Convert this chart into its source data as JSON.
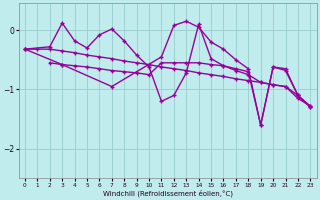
{
  "xlabel": "Windchill (Refroidissement éolien,°C)",
  "background_color": "#c0ecee",
  "grid_color": "#99cccc",
  "line_color": "#990099",
  "xlim": [
    -0.5,
    23.5
  ],
  "ylim": [
    -2.5,
    0.45
  ],
  "yticks": [
    0,
    -1,
    -2
  ],
  "xticks": [
    0,
    1,
    2,
    3,
    4,
    5,
    6,
    7,
    8,
    9,
    10,
    11,
    12,
    13,
    14,
    15,
    16,
    17,
    18,
    19,
    20,
    21,
    22,
    23
  ],
  "series": [
    {
      "x": [
        0,
        1,
        2,
        3,
        4,
        5,
        6,
        7,
        8,
        9,
        10,
        11,
        12,
        13,
        14,
        15,
        16,
        17,
        18,
        19,
        20,
        21,
        22,
        23
      ],
      "y": [
        -0.32,
        -0.32,
        -0.32,
        -0.35,
        -0.38,
        -0.42,
        -0.45,
        -0.48,
        -0.52,
        -0.55,
        -0.58,
        -0.62,
        -0.65,
        -0.68,
        -0.72,
        -0.75,
        -0.78,
        -0.82,
        -0.85,
        -0.88,
        -0.92,
        -0.95,
        -1.15,
        -1.28
      ]
    },
    {
      "x": [
        0,
        2,
        3,
        4,
        5,
        6,
        7,
        8,
        9,
        10,
        11,
        12,
        13,
        14,
        15,
        16,
        17,
        18,
        19,
        20,
        21,
        22,
        23
      ],
      "y": [
        -0.32,
        -0.28,
        0.12,
        -0.18,
        -0.3,
        -0.08,
        0.02,
        -0.18,
        -0.42,
        -0.62,
        -1.2,
        -1.1,
        -0.72,
        0.1,
        -0.48,
        -0.6,
        -0.68,
        -0.75,
        -0.88,
        -0.92,
        -0.95,
        -1.1,
        -1.28
      ]
    },
    {
      "x": [
        2,
        3,
        4,
        5,
        6,
        7,
        8,
        9,
        10,
        11,
        12,
        13,
        14,
        15,
        16,
        17,
        18,
        19,
        20,
        21,
        22,
        23
      ],
      "y": [
        -0.55,
        -0.58,
        -0.6,
        -0.62,
        -0.65,
        -0.68,
        -0.7,
        -0.72,
        -0.75,
        -0.55,
        -0.55,
        -0.55,
        -0.55,
        -0.58,
        -0.6,
        -0.65,
        -0.7,
        -1.6,
        -0.62,
        -0.65,
        -1.1,
        -1.3
      ]
    },
    {
      "x": [
        0,
        3,
        7,
        11,
        12,
        13,
        14,
        15,
        16,
        17,
        18,
        19,
        20,
        21,
        22,
        23
      ],
      "y": [
        -0.32,
        -0.58,
        -0.95,
        -0.45,
        0.08,
        0.15,
        0.05,
        -0.2,
        -0.32,
        -0.5,
        -0.65,
        -1.6,
        -0.62,
        -0.68,
        -1.1,
        -1.3
      ]
    }
  ]
}
